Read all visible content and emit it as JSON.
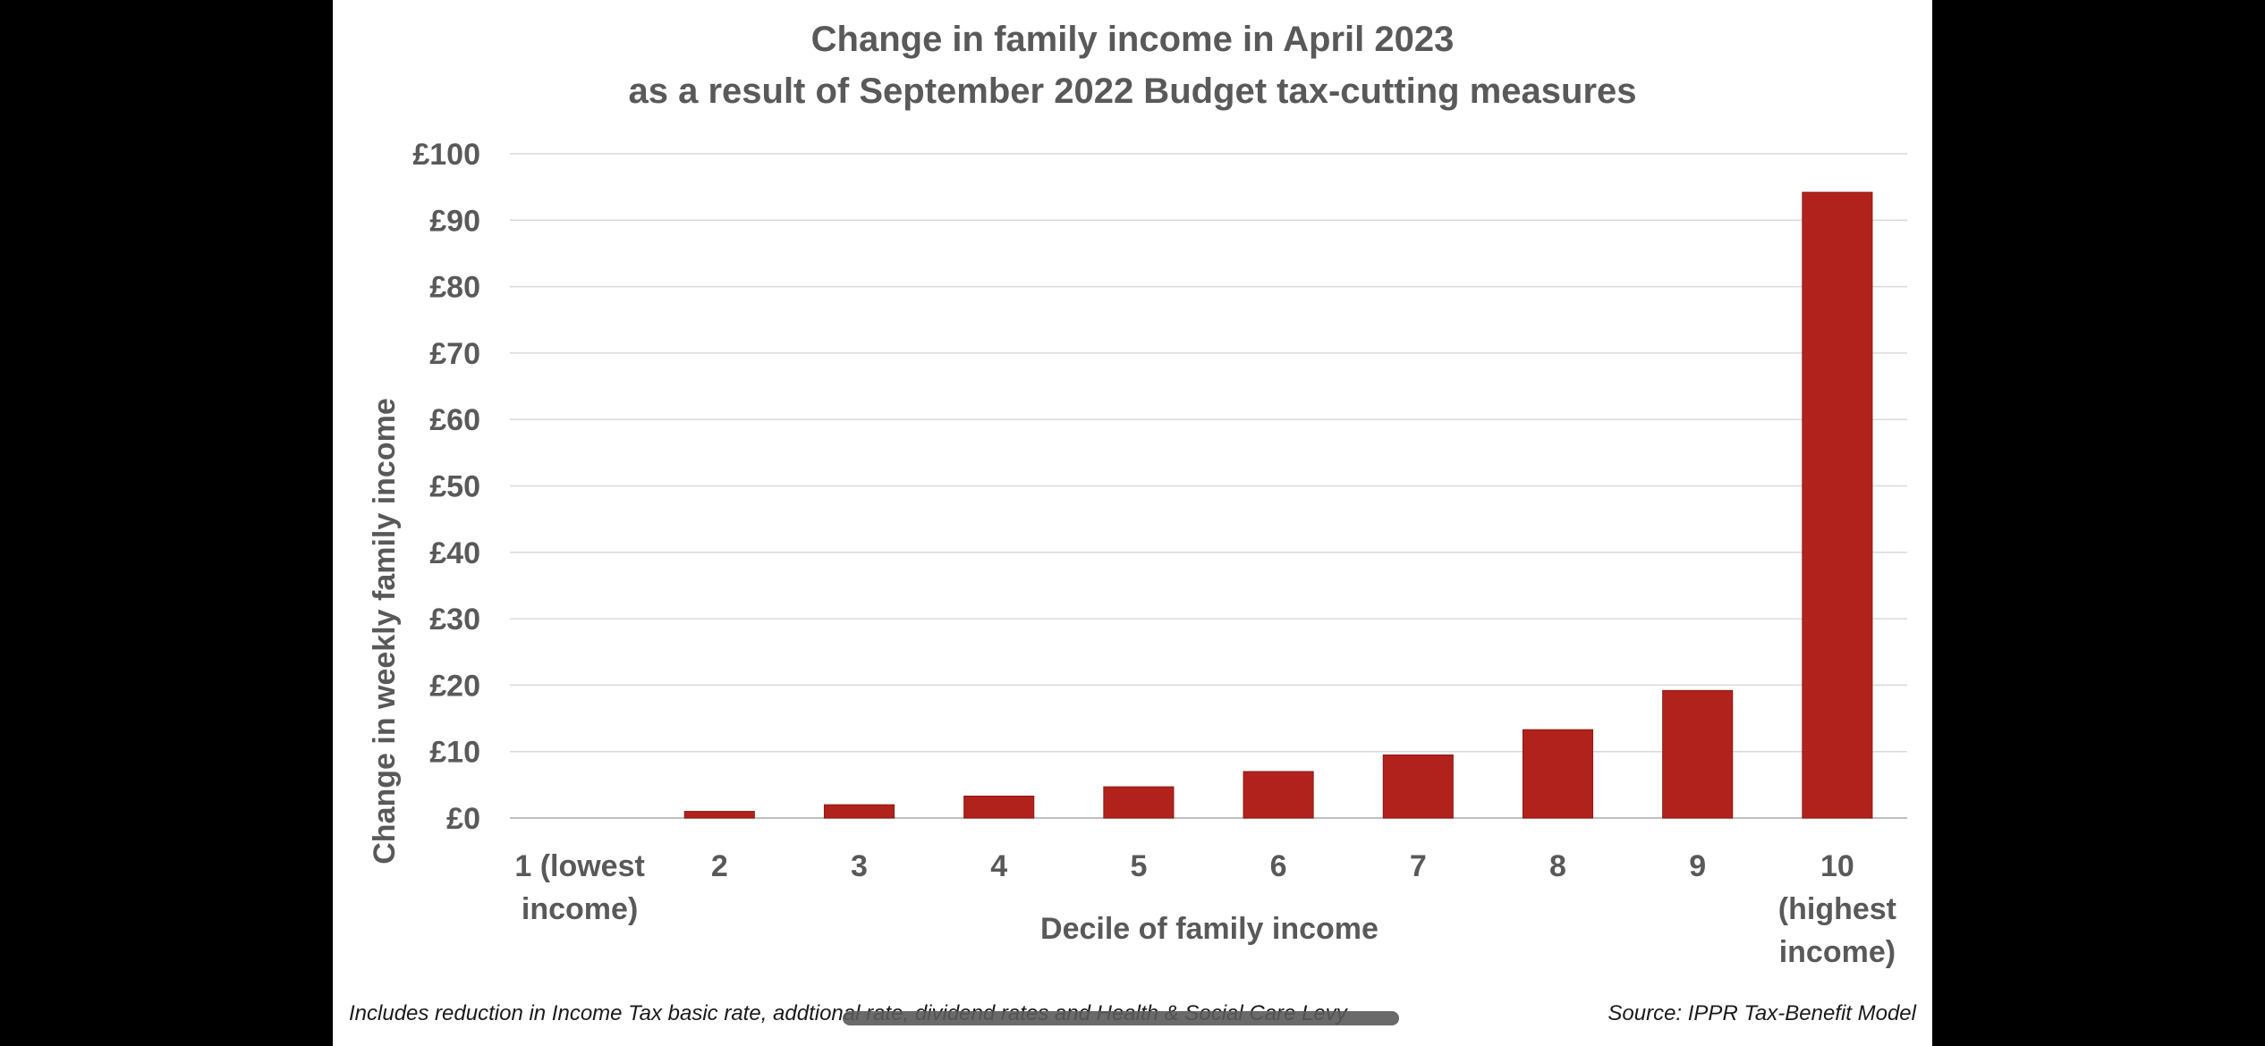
{
  "chart_data": {
    "type": "bar",
    "title": "Change in family income in April 2023",
    "subtitle": "as a result of September 2022 Budget tax-cutting measures",
    "xlabel": "Decile of family income",
    "ylabel": "Change in weekly family income",
    "categories": [
      [
        "1 (lowest",
        "income)"
      ],
      [
        "2"
      ],
      [
        "3"
      ],
      [
        "4"
      ],
      [
        "5"
      ],
      [
        "6"
      ],
      [
        "7"
      ],
      [
        "8"
      ],
      [
        "9"
      ],
      [
        "10",
        "(highest",
        "income)"
      ]
    ],
    "values": [
      0,
      1,
      2,
      3.3,
      4.7,
      7,
      9.5,
      13.3,
      19.2,
      94.2
    ],
    "ylim": [
      0,
      100
    ],
    "yticks": [
      0,
      10,
      20,
      30,
      40,
      50,
      60,
      70,
      80,
      90,
      100
    ],
    "ytick_labels": [
      "£0",
      "£10",
      "£20",
      "£30",
      "£40",
      "£50",
      "£60",
      "£70",
      "£80",
      "£90",
      "£100"
    ],
    "bar_color": "#b0221b",
    "grid": true,
    "legend": "none"
  },
  "footnote_left": "Includes reduction in Income Tax basic rate, addtional rate, dividend rates and Health & Social Care Levy",
  "footnote_right": "Source: IPPR Tax-Benefit Model"
}
